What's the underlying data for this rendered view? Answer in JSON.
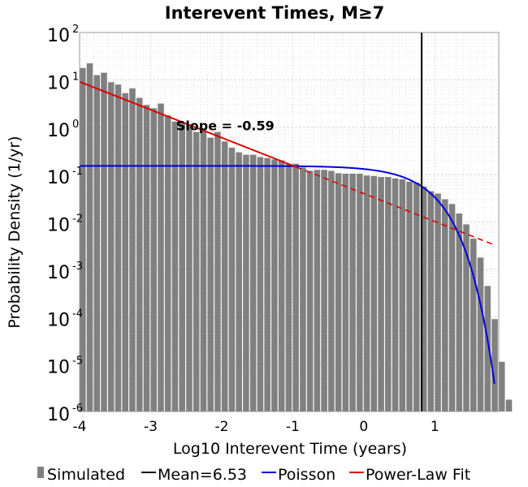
{
  "chart_data": {
    "type": "bar",
    "title": "Interevent Times, M≥7",
    "xlabel": "Log10 Interevent Time (years)",
    "ylabel": "Probability Density (1/yr)",
    "xlim": [
      -4,
      1.9
    ],
    "ylim_log10": [
      -6,
      2
    ],
    "y_scale": "log",
    "x_ticks": [
      -4,
      -3,
      -2,
      -1,
      0,
      1
    ],
    "y_ticks": [
      {
        "base": "10",
        "exp": "2"
      },
      {
        "base": "10",
        "exp": "1"
      },
      {
        "base": "10",
        "exp": "0"
      },
      {
        "base": "10",
        "exp": "-1"
      },
      {
        "base": "10",
        "exp": "-2"
      },
      {
        "base": "10",
        "exp": "-3"
      },
      {
        "base": "10",
        "exp": "-4"
      },
      {
        "base": "10",
        "exp": "-5"
      },
      {
        "base": "10",
        "exp": "-6"
      }
    ],
    "grid": true,
    "bin_start": -4.0,
    "bin_width": 0.1,
    "bar_color": "#808080",
    "series": [
      {
        "name": "Simulated",
        "type": "bar",
        "log10_density": [
          1.25,
          1.35,
          1.1,
          1.15,
          0.95,
          0.9,
          0.72,
          0.82,
          0.62,
          0.47,
          0.4,
          0.5,
          0.25,
          0.12,
          0.1,
          0.05,
          -0.1,
          -0.08,
          -0.22,
          -0.1,
          -0.3,
          -0.43,
          -0.53,
          -0.58,
          -0.58,
          -0.63,
          -0.65,
          -0.68,
          -0.7,
          -0.77,
          -0.77,
          -0.85,
          -0.92,
          -0.9,
          -0.9,
          -0.92,
          -0.97,
          -0.98,
          -0.98,
          -0.98,
          -1.02,
          -1.03,
          -1.05,
          -1.05,
          -1.08,
          -1.1,
          -1.15,
          -1.17,
          -1.25,
          -1.35,
          -1.4,
          -1.52,
          -1.62,
          -1.82,
          -2.05,
          -2.35,
          -2.75,
          -3.35,
          -4.05,
          -4.95,
          -5.75
        ]
      },
      {
        "name": "Poisson",
        "type": "line",
        "color": "#0000dd",
        "mean_years": 6.53
      },
      {
        "name": "Power-Law Fit",
        "type": "line",
        "color": "#dd0000",
        "slope": -0.59,
        "x_start": -4.0,
        "x_solid_end": -0.95,
        "x_end": 1.85,
        "log10_y_at_start": 0.96
      },
      {
        "name": "Mean=6.53",
        "type": "vline",
        "color": "#000000",
        "x": 0.815
      }
    ],
    "annotations": [
      {
        "text": "Slope = -0.59",
        "x": -1.95,
        "log10_y": 0.04
      }
    ],
    "legend": {
      "position": "bottom",
      "items": [
        {
          "label": "Simulated",
          "kind": "bar",
          "color": "#808080"
        },
        {
          "label": "Mean=6.53",
          "kind": "line",
          "color": "#000000"
        },
        {
          "label": "Poisson",
          "kind": "line",
          "color": "#0000dd"
        },
        {
          "label": "Power-Law Fit",
          "kind": "line",
          "color": "#dd0000"
        }
      ]
    }
  }
}
